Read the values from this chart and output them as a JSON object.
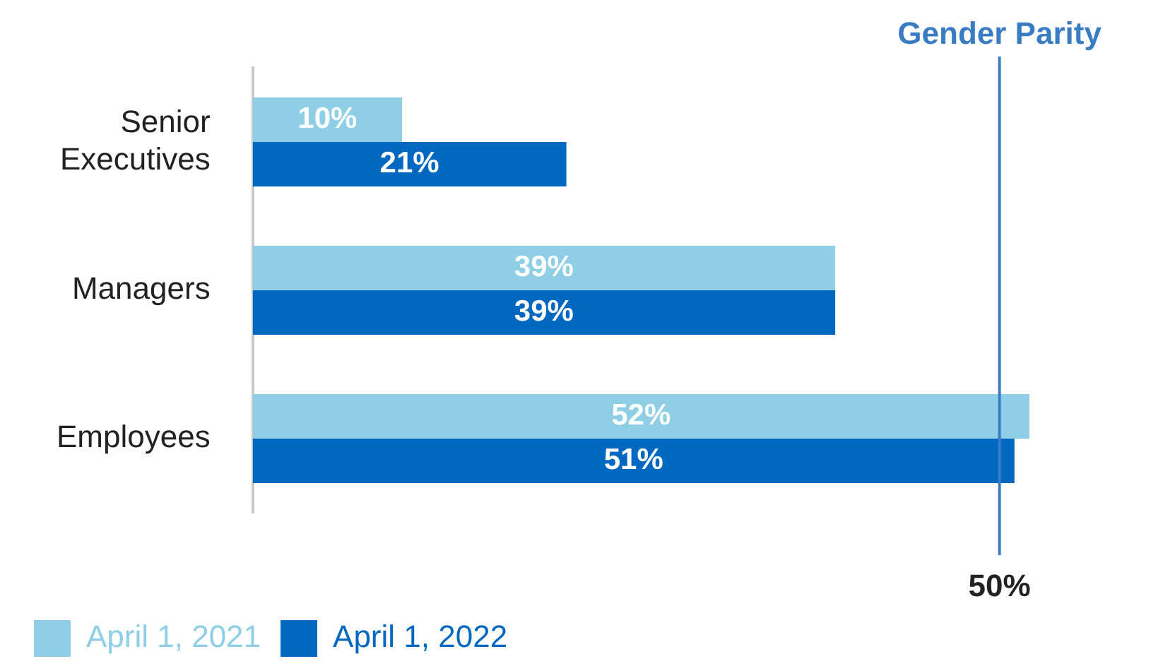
{
  "chart_data": {
    "type": "bar",
    "orientation": "horizontal",
    "categories": [
      "Senior Executives",
      "Managers",
      "Employees"
    ],
    "series": [
      {
        "name": "April 1, 2021",
        "color": "#8ecfe6",
        "values": [
          10,
          39,
          52
        ],
        "value_labels": [
          "10%",
          "39%",
          "52%"
        ]
      },
      {
        "name": "April 1, 2022",
        "color": "#0068c0",
        "values": [
          21,
          39,
          51
        ],
        "value_labels": [
          "21%",
          "39%",
          "51%"
        ]
      }
    ],
    "annotations": [
      "50%"
    ],
    "tick_labels": "y",
    "ref_lines": [
      {
        "axis": "x",
        "value": 50,
        "label": "Gender Parity",
        "color": "#3a7cc4"
      }
    ],
    "grid": false,
    "legend": "bottom left"
  }
}
